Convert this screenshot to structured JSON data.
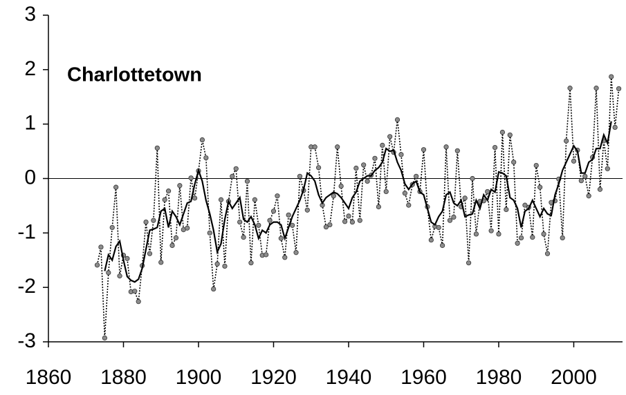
{
  "chart_data": {
    "type": "line",
    "title": "Charlottetown",
    "x": [
      1873,
      1874,
      1875,
      1876,
      1877,
      1878,
      1879,
      1880,
      1881,
      1882,
      1883,
      1884,
      1885,
      1886,
      1887,
      1888,
      1889,
      1890,
      1891,
      1892,
      1893,
      1894,
      1895,
      1896,
      1897,
      1898,
      1899,
      1900,
      1901,
      1902,
      1903,
      1904,
      1905,
      1906,
      1907,
      1908,
      1909,
      1910,
      1911,
      1912,
      1913,
      1914,
      1915,
      1916,
      1917,
      1918,
      1919,
      1920,
      1921,
      1922,
      1923,
      1924,
      1925,
      1926,
      1927,
      1928,
      1929,
      1930,
      1931,
      1932,
      1933,
      1934,
      1935,
      1936,
      1937,
      1938,
      1939,
      1940,
      1941,
      1942,
      1943,
      1944,
      1945,
      1946,
      1947,
      1948,
      1949,
      1950,
      1951,
      1952,
      1953,
      1954,
      1955,
      1956,
      1957,
      1958,
      1959,
      1960,
      1961,
      1962,
      1963,
      1964,
      1965,
      1966,
      1967,
      1968,
      1969,
      1970,
      1971,
      1972,
      1973,
      1974,
      1975,
      1976,
      1977,
      1978,
      1979,
      1980,
      1981,
      1982,
      1983,
      1984,
      1985,
      1986,
      1987,
      1988,
      1989,
      1990,
      1991,
      1992,
      1993,
      1994,
      1995,
      1996,
      1997,
      1998,
      1999,
      2000,
      2001,
      2002,
      2003,
      2004,
      2005,
      2006,
      2007,
      2008,
      2009,
      2010,
      2011,
      2012
    ],
    "series": [
      {
        "color": "#000000",
        "marker_color": "#8c8c8c",
        "line_style": "dotted",
        "markers": true,
        "values": [
          -1.59,
          -1.26,
          -2.93,
          -1.73,
          -0.9,
          -0.16,
          -1.79,
          -1.41,
          -1.47,
          -2.08,
          -2.07,
          -2.26,
          -1.6,
          -0.8,
          -1.38,
          -0.77,
          0.56,
          -1.54,
          -0.39,
          -0.23,
          -1.23,
          -1.09,
          -0.13,
          -0.94,
          -0.91,
          0.01,
          -0.36,
          0.14,
          0.71,
          0.38,
          -1.0,
          -2.03,
          -1.57,
          -0.39,
          -1.61,
          -0.42,
          0.04,
          0.18,
          -0.8,
          -1.08,
          -0.05,
          -1.55,
          -0.39,
          -0.86,
          -1.41,
          -1.4,
          -0.77,
          -0.6,
          -0.32,
          -1.1,
          -1.45,
          -0.67,
          -0.86,
          -1.36,
          0.04,
          -0.22,
          -0.58,
          0.58,
          0.58,
          0.2,
          -0.49,
          -0.89,
          -0.85,
          -0.32,
          0.58,
          -0.14,
          -0.79,
          -0.69,
          -0.8,
          0.19,
          -0.77,
          0.25,
          -0.05,
          0.06,
          0.37,
          -0.52,
          0.61,
          -0.24,
          0.77,
          0.48,
          1.08,
          0.44,
          -0.27,
          -0.49,
          -0.11,
          0.04,
          -0.24,
          0.53,
          -0.52,
          -1.13,
          -0.88,
          -0.9,
          -1.23,
          0.58,
          -0.77,
          -0.71,
          0.51,
          -0.52,
          -0.36,
          -1.55,
          0.0,
          -1.02,
          -0.42,
          -0.41,
          -0.24,
          -0.96,
          0.57,
          -1.02,
          0.85,
          -0.57,
          0.8,
          0.3,
          -1.19,
          -1.09,
          -0.49,
          -0.53,
          -1.08,
          0.24,
          -0.16,
          -1.02,
          -1.38,
          -0.44,
          -0.41,
          -0.01,
          -1.09,
          0.69,
          1.66,
          0.32,
          0.52,
          -0.04,
          0.04,
          -0.32,
          0.39,
          1.66,
          -0.2,
          0.69,
          0.18,
          1.87,
          0.94,
          1.65
        ]
      },
      {
        "color": "#000000",
        "line_style": "solid",
        "markers": false,
        "values": [
          null,
          null,
          -1.7,
          -1.4,
          -1.5,
          -1.25,
          -1.15,
          -1.5,
          -1.8,
          -1.87,
          -1.9,
          -1.85,
          -1.65,
          -1.3,
          -0.95,
          -0.93,
          -0.9,
          -0.6,
          -0.55,
          -0.9,
          -0.6,
          -0.7,
          -0.85,
          -0.65,
          -0.45,
          -0.42,
          -0.1,
          0.15,
          -0.05,
          -0.4,
          -0.65,
          -0.95,
          -1.35,
          -1.2,
          -0.75,
          -0.42,
          -0.55,
          -0.45,
          -0.35,
          -0.75,
          -0.8,
          -0.7,
          -0.85,
          -1.1,
          -0.95,
          -1.0,
          -0.85,
          -0.8,
          -0.8,
          -0.85,
          -1.1,
          -0.9,
          -0.7,
          -0.55,
          -0.4,
          -0.2,
          0.1,
          0.05,
          -0.05,
          -0.3,
          -0.45,
          -0.35,
          -0.3,
          -0.25,
          -0.28,
          -0.35,
          -0.45,
          -0.55,
          -0.35,
          -0.25,
          -0.05,
          0.0,
          0.05,
          0.05,
          0.15,
          0.2,
          0.3,
          0.55,
          0.5,
          0.52,
          0.3,
          0.15,
          -0.1,
          -0.2,
          -0.1,
          -0.05,
          -0.25,
          -0.3,
          -0.55,
          -0.8,
          -0.85,
          -0.7,
          -0.6,
          -0.3,
          -0.25,
          -0.45,
          -0.5,
          -0.4,
          -0.7,
          -0.67,
          -0.65,
          -0.4,
          -0.55,
          -0.3,
          -0.4,
          -0.2,
          -0.25,
          0.12,
          0.1,
          0.05,
          -0.35,
          -0.4,
          -0.55,
          -0.9,
          -0.6,
          -0.55,
          -0.4,
          -0.55,
          -0.7,
          -0.55,
          -0.65,
          -0.68,
          -0.3,
          -0.1,
          0.15,
          0.3,
          0.45,
          0.6,
          0.5,
          0.1,
          0.1,
          0.3,
          0.35,
          0.55,
          0.55,
          0.8,
          0.65,
          1.05,
          null,
          null
        ]
      }
    ],
    "xlim": [
      1860,
      2013
    ],
    "xticks": [
      1860,
      1880,
      1900,
      1920,
      1940,
      1960,
      1980,
      2000
    ],
    "ylim": [
      -3,
      3
    ],
    "yticks": [
      -3,
      -2,
      -1,
      0,
      1,
      2,
      3
    ],
    "hline": 0
  }
}
